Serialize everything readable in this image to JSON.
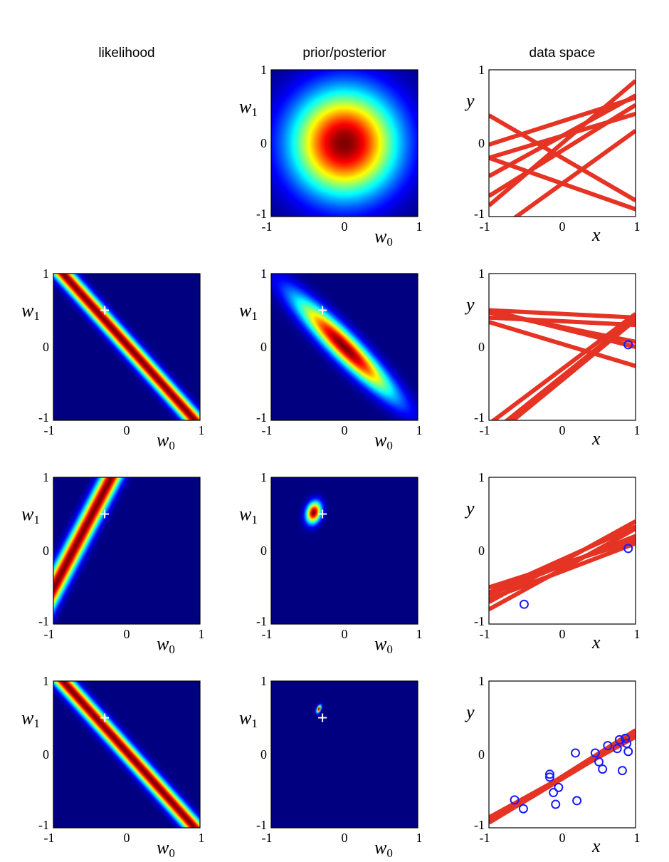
{
  "column_titles": {
    "likelihood": "likelihood",
    "prior_posterior": "prior/posterior",
    "data_space": "data space"
  },
  "ticks": {
    "min": "-1",
    "mid": "0",
    "max": "1"
  },
  "axis_labels": {
    "w0": {
      "base": "w",
      "sub": "0"
    },
    "w1": {
      "base": "w",
      "sub": "1"
    },
    "x": "x",
    "y": "y"
  },
  "colormap": "jet",
  "colors": {
    "line": "#e53324",
    "point": "#1a1aff",
    "marker": "#ffffff"
  },
  "domain": {
    "w0": [
      -1,
      1
    ],
    "w1": [
      -1,
      1
    ],
    "x": [
      -1,
      1
    ],
    "y": [
      -1,
      1
    ]
  },
  "rows": [
    {
      "likelihood": null,
      "posterior": {
        "mean": [
          0,
          0
        ],
        "sd": [
          0.5,
          0.5
        ],
        "rho": 0
      },
      "samples": [
        [
          -0.55,
          0.72
        ],
        [
          -0.1,
          0.62
        ],
        [
          -0.55,
          -0.35
        ],
        [
          0.0,
          0.85
        ],
        [
          0.1,
          0.55
        ],
        [
          0.1,
          0.3
        ],
        [
          -0.2,
          -0.58
        ],
        [
          0.3,
          0.32
        ]
      ],
      "points": []
    },
    {
      "likelihood": {
        "x": 0.9,
        "t": 0.03,
        "width": 0.1
      },
      "true_w": [
        -0.3,
        0.5
      ],
      "posterior": {
        "mean": [
          0.0,
          0.0
        ],
        "sd": [
          0.45,
          0.45
        ],
        "rho": -0.93
      },
      "samples": [
        [
          0.04,
          -0.3
        ],
        [
          0.25,
          -0.25
        ],
        [
          0.27,
          -0.2
        ],
        [
          0.35,
          -0.05
        ],
        [
          0.45,
          -0.05
        ],
        [
          -0.3,
          0.75
        ],
        [
          -0.4,
          0.8
        ],
        [
          -0.45,
          0.82
        ]
      ],
      "points": [
        [
          0.9,
          0.03
        ]
      ]
    },
    {
      "likelihood": {
        "x": -0.52,
        "t": -0.73,
        "width": 0.1
      },
      "true_w": [
        -0.3,
        0.5
      ],
      "posterior": {
        "mean": [
          -0.42,
          0.52
        ],
        "sd": [
          0.07,
          0.1
        ],
        "rho": 0.2
      },
      "samples": [
        [
          -0.28,
          0.38
        ],
        [
          -0.2,
          0.4
        ],
        [
          -0.15,
          0.55
        ],
        [
          -0.12,
          0.45
        ],
        [
          -0.18,
          0.32
        ],
        [
          -0.25,
          0.55
        ]
      ],
      "points": [
        [
          0.9,
          0.03
        ],
        [
          -0.52,
          -0.73
        ]
      ]
    },
    {
      "likelihood": {
        "x": 0.9,
        "t": 0.03,
        "width": 0.1
      },
      "true_w": [
        -0.3,
        0.5
      ],
      "posterior": {
        "mean": [
          -0.35,
          0.62
        ],
        "sd": [
          0.022,
          0.035
        ],
        "rho": 0.5
      },
      "samples": [
        [
          -0.31,
          0.55
        ],
        [
          -0.32,
          0.6
        ],
        [
          -0.3,
          0.63
        ],
        [
          -0.33,
          0.6
        ]
      ],
      "points": [
        [
          -0.65,
          -0.62
        ],
        [
          -0.53,
          -0.74
        ],
        [
          -0.17,
          -0.27
        ],
        [
          -0.17,
          -0.31
        ],
        [
          -0.12,
          -0.52
        ],
        [
          -0.09,
          -0.68
        ],
        [
          -0.05,
          -0.45
        ],
        [
          0.18,
          0.02
        ],
        [
          0.2,
          -0.63
        ],
        [
          0.45,
          0.02
        ],
        [
          0.5,
          -0.1
        ],
        [
          0.55,
          -0.2
        ],
        [
          0.62,
          0.12
        ],
        [
          0.75,
          0.08
        ],
        [
          0.78,
          0.2
        ],
        [
          0.82,
          -0.22
        ],
        [
          0.86,
          0.22
        ],
        [
          0.88,
          0.15
        ],
        [
          0.9,
          0.04
        ]
      ]
    }
  ]
}
